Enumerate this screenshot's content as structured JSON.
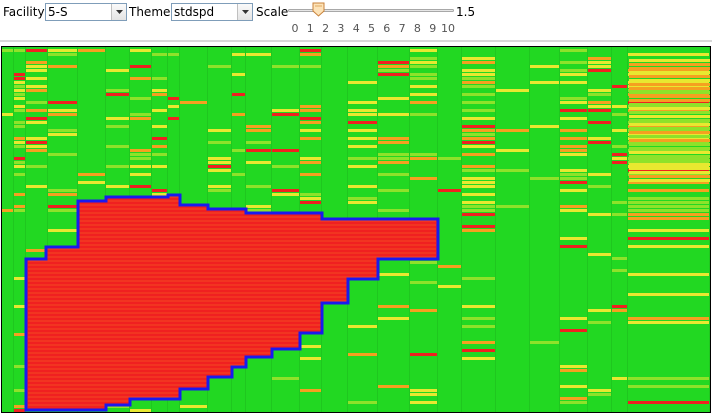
{
  "toolbar": {
    "facility_label": "Facility",
    "facility_value": "5-S",
    "theme_label": "Theme",
    "theme_value": "stdspd",
    "scale_label": "Scale",
    "scale_value": "1.5",
    "slider_value": 1.5,
    "slider_min": 0,
    "slider_max": 10,
    "slider_ticks": [
      "0",
      "1",
      "2",
      "3",
      "4",
      "5",
      "6",
      "7",
      "8",
      "9",
      "10"
    ]
  },
  "heatmap": {
    "colors": {
      "green": "#22d822",
      "lime": "#8ee22a",
      "yellow": "#e8e830",
      "orange": "#f5a020",
      "red": "#f02020",
      "outline": "#1a1aee"
    }
  }
}
